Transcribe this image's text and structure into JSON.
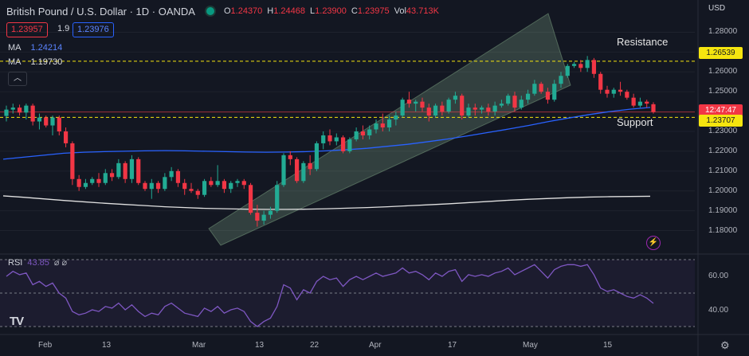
{
  "header": {
    "symbol": "British Pound / U.S. Dollar · 1D · OANDA",
    "o_label": "O",
    "o": "1.24370",
    "h_label": "H",
    "h": "1.24468",
    "l_label": "L",
    "l": "1.23900",
    "c_label": "C",
    "c": "1.23975",
    "vol_label": "Vol",
    "vol": "43.713K"
  },
  "prices": {
    "bid": "1.23957",
    "spread": "1.9",
    "ask": "1.23976"
  },
  "indicators": [
    {
      "name": "MA",
      "value": "1.24214",
      "color": "#2962ff"
    },
    {
      "name": "MA",
      "value": "1.19730",
      "color": "#e0e0e0"
    }
  ],
  "collapse_icon": "chevron-up-icon",
  "rsi": {
    "name": "RSI",
    "value": "43.85",
    "icons": "⌀ ⌀"
  },
  "price_axis": {
    "currency": "USD",
    "ticks": [
      "1.28000",
      "1.27000",
      "1.26000",
      "1.25000",
      "1.24000",
      "1.23000",
      "1.22000",
      "1.21000",
      "1.20000",
      "1.19000",
      "1.18000"
    ]
  },
  "tags": {
    "resistance": "1.26539",
    "countdown": "12:47:47",
    "support": "1.23707"
  },
  "annotations": {
    "resistance": "Resistance",
    "support": "Support"
  },
  "rsi_axis": {
    "ticks": [
      "60.00",
      "40.00"
    ]
  },
  "time_axis": [
    "Feb",
    "13",
    "Mar",
    "13",
    "22",
    "Apr",
    "17",
    "May",
    "15"
  ],
  "colors": {
    "up": "#22ab94",
    "down": "#f23645",
    "ma_fast": "#2962ff",
    "ma_slow": "#e0e0e0",
    "rsi": "#7e57c2",
    "channel": "#a5d6a7",
    "level": "#f5e50f"
  },
  "chart_data": {
    "type": "candlestick",
    "y_range": [
      1.175,
      1.285
    ],
    "rsi_range": [
      30,
      70
    ],
    "resistance": 1.26539,
    "support": 1.23707,
    "candles": [
      [
        1.2378,
        1.243,
        1.235,
        1.241
      ],
      [
        1.241,
        1.244,
        1.239,
        1.242
      ],
      [
        1.242,
        1.2435,
        1.238,
        1.2395
      ],
      [
        1.2395,
        1.244,
        1.236,
        1.243
      ],
      [
        1.243,
        1.244,
        1.233,
        1.235
      ],
      [
        1.235,
        1.239,
        1.231,
        1.237
      ],
      [
        1.237,
        1.238,
        1.232,
        1.233
      ],
      [
        1.233,
        1.238,
        1.228,
        1.237
      ],
      [
        1.237,
        1.238,
        1.228,
        1.23
      ],
      [
        1.23,
        1.232,
        1.222,
        1.224
      ],
      [
        1.224,
        1.225,
        1.203,
        1.206
      ],
      [
        1.206,
        1.208,
        1.2,
        1.202
      ],
      [
        1.202,
        1.206,
        1.201,
        1.204
      ],
      [
        1.204,
        1.207,
        1.203,
        1.206
      ],
      [
        1.206,
        1.209,
        1.202,
        1.204
      ],
      [
        1.204,
        1.211,
        1.203,
        1.209
      ],
      [
        1.209,
        1.211,
        1.205,
        1.207
      ],
      [
        1.207,
        1.216,
        1.206,
        1.214
      ],
      [
        1.214,
        1.215,
        1.204,
        1.206
      ],
      [
        1.206,
        1.218,
        1.204,
        1.216
      ],
      [
        1.216,
        1.217,
        1.203,
        1.204
      ],
      [
        1.204,
        1.205,
        1.2,
        1.201
      ],
      [
        1.201,
        1.206,
        1.196,
        1.204
      ],
      [
        1.204,
        1.205,
        1.199,
        1.201
      ],
      [
        1.201,
        1.209,
        1.2,
        1.207
      ],
      [
        1.207,
        1.212,
        1.205,
        1.21
      ],
      [
        1.21,
        1.211,
        1.202,
        1.204
      ],
      [
        1.204,
        1.206,
        1.198,
        1.201
      ],
      [
        1.201,
        1.204,
        1.199,
        1.2
      ],
      [
        1.2,
        1.201,
        1.196,
        1.198
      ],
      [
        1.198,
        1.206,
        1.197,
        1.205
      ],
      [
        1.205,
        1.207,
        1.202,
        1.203
      ],
      [
        1.203,
        1.213,
        1.202,
        1.205
      ],
      [
        1.205,
        1.206,
        1.199,
        1.201
      ],
      [
        1.201,
        1.205,
        1.199,
        1.204
      ],
      [
        1.204,
        1.206,
        1.202,
        1.205
      ],
      [
        1.205,
        1.206,
        1.201,
        1.203
      ],
      [
        1.203,
        1.204,
        1.188,
        1.189
      ],
      [
        1.189,
        1.193,
        1.182,
        1.185
      ],
      [
        1.185,
        1.19,
        1.183,
        1.188
      ],
      [
        1.188,
        1.192,
        1.186,
        1.19
      ],
      [
        1.19,
        1.205,
        1.189,
        1.203
      ],
      [
        1.203,
        1.219,
        1.202,
        1.218
      ],
      [
        1.218,
        1.22,
        1.213,
        1.216
      ],
      [
        1.216,
        1.217,
        1.204,
        1.205
      ],
      [
        1.205,
        1.215,
        1.204,
        1.214
      ],
      [
        1.214,
        1.218,
        1.208,
        1.211
      ],
      [
        1.211,
        1.225,
        1.21,
        1.224
      ],
      [
        1.224,
        1.23,
        1.221,
        1.228
      ],
      [
        1.228,
        1.231,
        1.223,
        1.225
      ],
      [
        1.225,
        1.229,
        1.223,
        1.227
      ],
      [
        1.227,
        1.228,
        1.219,
        1.22
      ],
      [
        1.22,
        1.227,
        1.219,
        1.226
      ],
      [
        1.226,
        1.232,
        1.225,
        1.23
      ],
      [
        1.23,
        1.233,
        1.226,
        1.228
      ],
      [
        1.228,
        1.233,
        1.226,
        1.231
      ],
      [
        1.231,
        1.236,
        1.229,
        1.234
      ],
      [
        1.234,
        1.239,
        1.23,
        1.232
      ],
      [
        1.232,
        1.238,
        1.23,
        1.236
      ],
      [
        1.236,
        1.24,
        1.233,
        1.238
      ],
      [
        1.238,
        1.247,
        1.237,
        1.246
      ],
      [
        1.246,
        1.25,
        1.242,
        1.244
      ],
      [
        1.244,
        1.246,
        1.24,
        1.245
      ],
      [
        1.245,
        1.247,
        1.24,
        1.242
      ],
      [
        1.242,
        1.244,
        1.235,
        1.238
      ],
      [
        1.238,
        1.244,
        1.237,
        1.243
      ],
      [
        1.243,
        1.245,
        1.238,
        1.24
      ],
      [
        1.24,
        1.247,
        1.239,
        1.246
      ],
      [
        1.246,
        1.25,
        1.244,
        1.248
      ],
      [
        1.248,
        1.249,
        1.236,
        1.238
      ],
      [
        1.238,
        1.244,
        1.237,
        1.242
      ],
      [
        1.242,
        1.244,
        1.238,
        1.241
      ],
      [
        1.241,
        1.243,
        1.239,
        1.242
      ],
      [
        1.242,
        1.244,
        1.238,
        1.24
      ],
      [
        1.24,
        1.245,
        1.238,
        1.243
      ],
      [
        1.243,
        1.246,
        1.242,
        1.244
      ],
      [
        1.244,
        1.249,
        1.243,
        1.248
      ],
      [
        1.248,
        1.25,
        1.24,
        1.242
      ],
      [
        1.242,
        1.248,
        1.241,
        1.246
      ],
      [
        1.246,
        1.251,
        1.244,
        1.249
      ],
      [
        1.249,
        1.256,
        1.248,
        1.254
      ],
      [
        1.254,
        1.255,
        1.249,
        1.25
      ],
      [
        1.25,
        1.252,
        1.244,
        1.246
      ],
      [
        1.246,
        1.256,
        1.245,
        1.254
      ],
      [
        1.254,
        1.26,
        1.252,
        1.258
      ],
      [
        1.258,
        1.264,
        1.257,
        1.263
      ],
      [
        1.263,
        1.265,
        1.262,
        1.264
      ],
      [
        1.264,
        1.266,
        1.26,
        1.262
      ],
      [
        1.262,
        1.268,
        1.26,
        1.266
      ],
      [
        1.266,
        1.267,
        1.257,
        1.259
      ],
      [
        1.259,
        1.26,
        1.249,
        1.251
      ],
      [
        1.251,
        1.253,
        1.247,
        1.249
      ],
      [
        1.249,
        1.252,
        1.247,
        1.251
      ],
      [
        1.251,
        1.255,
        1.248,
        1.25
      ],
      [
        1.25,
        1.251,
        1.246,
        1.247
      ],
      [
        1.247,
        1.249,
        1.242,
        1.243
      ],
      [
        1.243,
        1.247,
        1.242,
        1.245
      ],
      [
        1.245,
        1.246,
        1.242,
        1.244
      ],
      [
        1.2437,
        1.2447,
        1.239,
        1.2398
      ]
    ],
    "ma_fast": [
      1.216,
      1.217,
      1.218,
      1.219,
      1.2195,
      1.2198,
      1.22,
      1.2202,
      1.2203,
      1.2202,
      1.22,
      1.2198,
      1.2196,
      1.2195,
      1.2196,
      1.2198,
      1.2202,
      1.2208,
      1.2215,
      1.2225,
      1.2235,
      1.2248,
      1.2262,
      1.2278,
      1.2295,
      1.2312,
      1.233,
      1.235,
      1.2368,
      1.2385,
      1.24,
      1.2412,
      1.2421
    ],
    "ma_slow": [
      1.1975,
      1.1968,
      1.196,
      1.1952,
      1.1945,
      1.1938,
      1.1932,
      1.1926,
      1.192,
      1.1916,
      1.1912,
      1.191,
      1.1908,
      1.1907,
      1.1907,
      1.1908,
      1.191,
      1.1913,
      1.1916,
      1.192,
      1.1925,
      1.193,
      1.1935,
      1.1941,
      1.1947,
      1.1953,
      1.1958,
      1.1962,
      1.1966,
      1.1969,
      1.1971,
      1.1972,
      1.1973
    ],
    "rsi": [
      60,
      63,
      61,
      62,
      55,
      57,
      54,
      56,
      50,
      47,
      39,
      37,
      38,
      40,
      39,
      42,
      41,
      44,
      40,
      43,
      39,
      36,
      38,
      37,
      42,
      44,
      41,
      38,
      37,
      36,
      41,
      39,
      42,
      38,
      40,
      41,
      39,
      33,
      30,
      33,
      35,
      42,
      55,
      53,
      46,
      52,
      50,
      57,
      60,
      58,
      59,
      54,
      58,
      60,
      58,
      60,
      62,
      60,
      61,
      62,
      65,
      62,
      63,
      61,
      58,
      62,
      60,
      63,
      64,
      57,
      61,
      60,
      61,
      60,
      62,
      63,
      65,
      61,
      63,
      65,
      67,
      63,
      59,
      64,
      66,
      67,
      67,
      66,
      67,
      61,
      53,
      51,
      52,
      50,
      48,
      47,
      49,
      47,
      43.85
    ]
  }
}
